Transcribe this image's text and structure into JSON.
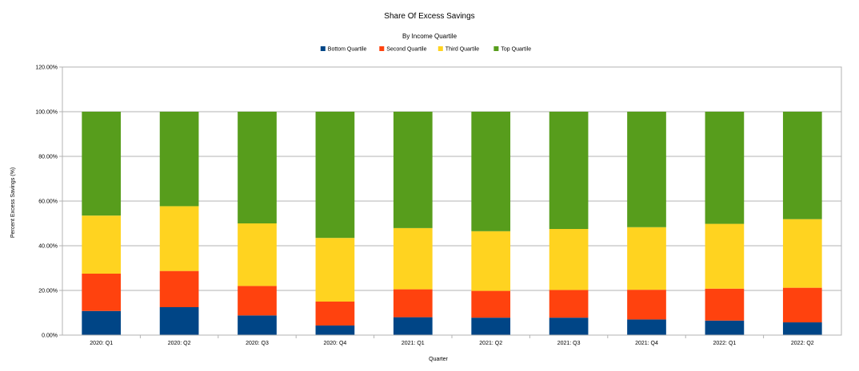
{
  "chart_data": {
    "type": "bar",
    "stacked": true,
    "title": "Share Of Excess Savings",
    "subtitle": "By Income Quartile",
    "xlabel": "Quarter",
    "ylabel": "Percent Excess Savings (%)",
    "ylim": [
      0,
      1.2
    ],
    "yticks": [
      "0.00%",
      "20.00%",
      "40.00%",
      "60.00%",
      "80.00%",
      "100.00%",
      "120.00%"
    ],
    "grid": true,
    "legend_position": "top",
    "categories": [
      "2020: Q1",
      "2020: Q2",
      "2020: Q3",
      "2020: Q4",
      "2021: Q1",
      "2021: Q2",
      "2021: Q3",
      "2021: Q4",
      "2022: Q1",
      "2022: Q2"
    ],
    "series": [
      {
        "name": "Bottom Quartile",
        "color": "#004586",
        "values": [
          0.108,
          0.125,
          0.088,
          0.043,
          0.08,
          0.078,
          0.078,
          0.07,
          0.065,
          0.057
        ]
      },
      {
        "name": "Second Quartile",
        "color": "#ff420e",
        "values": [
          0.167,
          0.162,
          0.132,
          0.107,
          0.125,
          0.12,
          0.124,
          0.133,
          0.143,
          0.155
        ]
      },
      {
        "name": "Third Quartile",
        "color": "#ffd320",
        "values": [
          0.26,
          0.29,
          0.28,
          0.285,
          0.274,
          0.267,
          0.273,
          0.28,
          0.29,
          0.307
        ]
      },
      {
        "name": "Top Quartile",
        "color": "#579d1c",
        "values": [
          0.465,
          0.423,
          0.5,
          0.565,
          0.521,
          0.535,
          0.525,
          0.517,
          0.502,
          0.481
        ]
      }
    ]
  }
}
